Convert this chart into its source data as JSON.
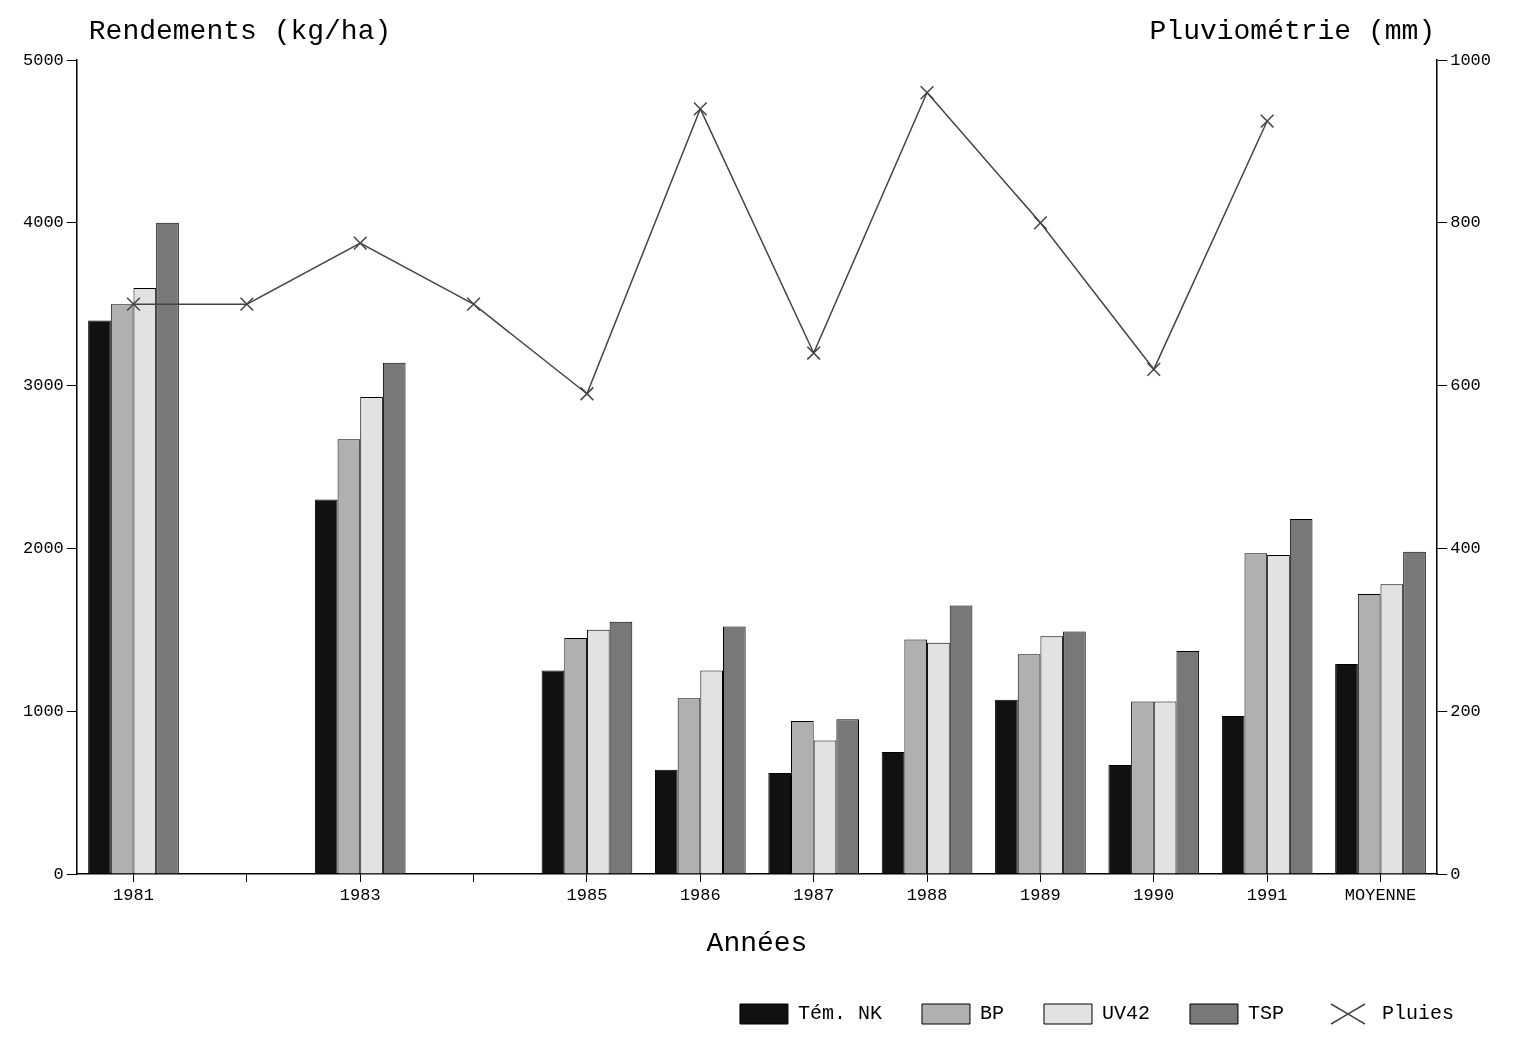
{
  "chart_data": {
    "type": "bar",
    "xlabel": "Années",
    "ylabel": "Rendements (kg/ha)",
    "y2label": "Pluviométrie (mm)",
    "categories": [
      "1981",
      null,
      "1983",
      null,
      "1985",
      "1986",
      "1987",
      "1988",
      "1989",
      "1990",
      "1991",
      "MOYENNE"
    ],
    "series": [
      {
        "name": "Tém. NK",
        "color": "#111111",
        "values": [
          3400,
          null,
          2300,
          null,
          1250,
          640,
          620,
          750,
          1070,
          670,
          970,
          1290
        ]
      },
      {
        "name": "BP",
        "color": "#b0b0b0",
        "values": [
          3500,
          null,
          2670,
          null,
          1450,
          1080,
          940,
          1440,
          1350,
          1060,
          1970,
          1720
        ]
      },
      {
        "name": "UV42",
        "color": "#e2e2e2",
        "values": [
          3600,
          null,
          2930,
          null,
          1500,
          1250,
          820,
          1420,
          1460,
          1060,
          1960,
          1780
        ]
      },
      {
        "name": "TSP",
        "color": "#787878",
        "values": [
          4000,
          null,
          3140,
          null,
          1550,
          1520,
          950,
          1650,
          1490,
          1370,
          2180,
          1980
        ]
      },
      {
        "name": "Pluies",
        "type": "line",
        "axis": "y2",
        "color": "#444444",
        "marker": "cross",
        "values": [
          700,
          700,
          775,
          700,
          590,
          940,
          640,
          960,
          800,
          620,
          925,
          null
        ]
      }
    ],
    "ylim": [
      0,
      5000
    ],
    "yticks": [
      0,
      1000,
      2000,
      3000,
      4000,
      5000
    ],
    "y2lim": [
      0,
      1000
    ],
    "y2ticks": [
      0,
      200,
      400,
      600,
      800,
      1000
    ],
    "grid": false,
    "legend": "bottom"
  }
}
